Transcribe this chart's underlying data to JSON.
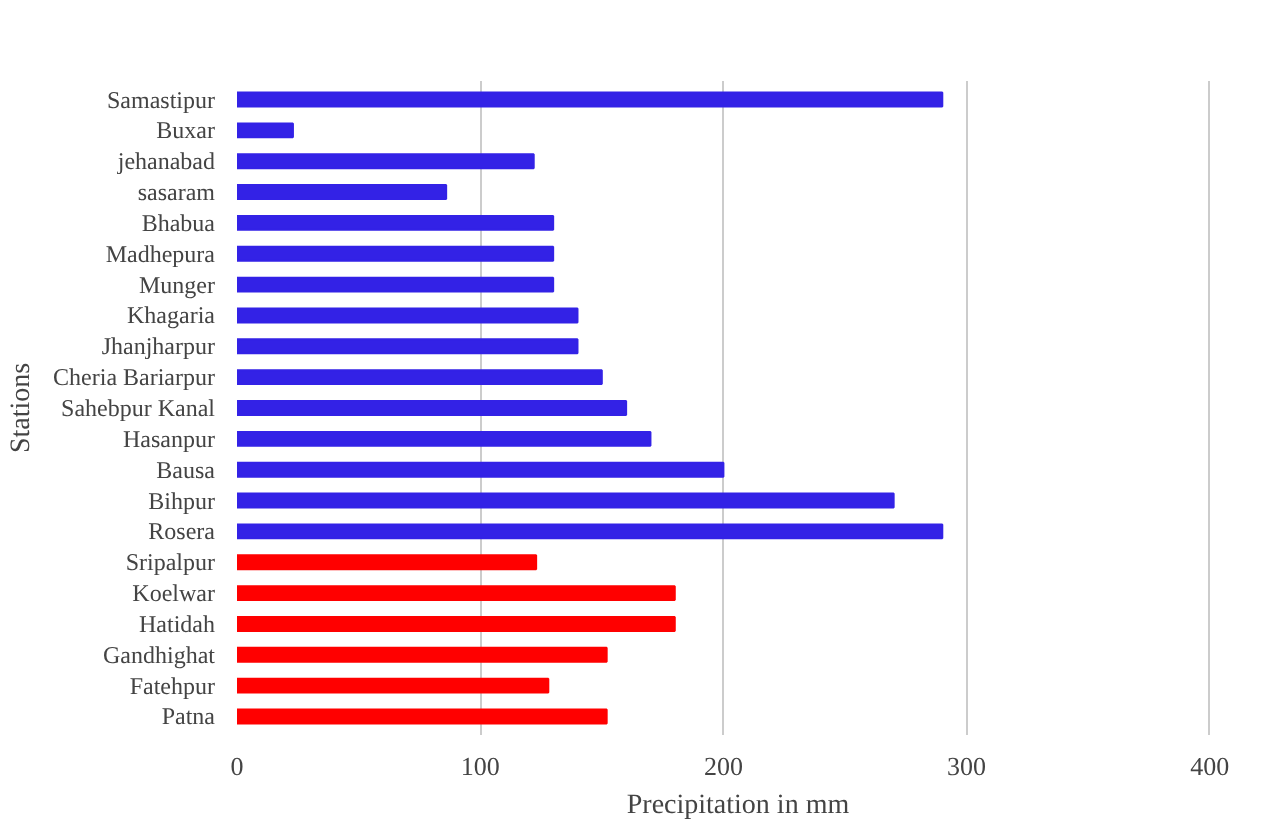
{
  "chart_data": {
    "type": "bar",
    "orientation": "horizontal",
    "xlabel": "Precipitation in mm",
    "ylabel": "Stations",
    "categories": [
      "Samastipur",
      "Buxar",
      "jehanabad",
      "sasaram",
      "Bhabua",
      "Madhepura",
      "Munger",
      "Khagaria",
      "Jhanjharpur",
      "Cheria Bariarpur",
      "Sahebpur Kanal",
      "Hasanpur",
      "Bausa",
      "Bihpur",
      "Rosera",
      "Sripalpur",
      "Koelwar",
      "Hatidah",
      "Gandhighat",
      "Fatehpur",
      "Patna"
    ],
    "values": [
      290,
      23,
      122,
      86,
      130,
      130,
      130,
      140,
      140,
      150,
      160,
      170,
      200,
      270,
      290,
      123,
      180,
      180,
      152,
      128,
      152
    ],
    "colors": [
      "#3322e6",
      "#3322e6",
      "#3322e6",
      "#3322e6",
      "#3322e6",
      "#3322e6",
      "#3322e6",
      "#3322e6",
      "#3322e6",
      "#3322e6",
      "#3322e6",
      "#3322e6",
      "#3322e6",
      "#3322e6",
      "#3322e6",
      "#ff0000",
      "#ff0000",
      "#ff0000",
      "#ff0000",
      "#ff0000",
      "#ff0000"
    ],
    "xlim": [
      0,
      400
    ],
    "xticks": [
      0,
      100,
      200,
      300,
      400
    ],
    "grid": "x"
  }
}
